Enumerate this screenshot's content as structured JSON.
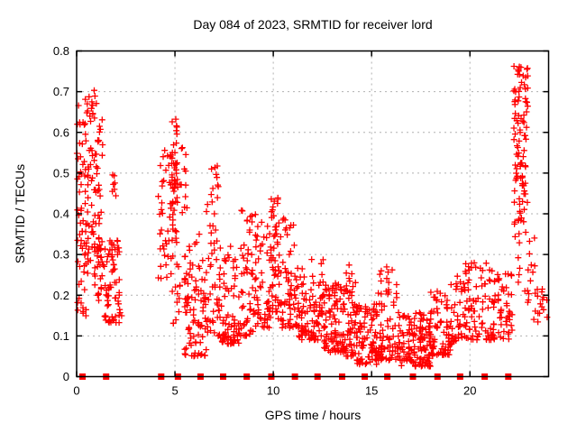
{
  "chart_data": {
    "type": "scatter",
    "title": "Day 084 of 2023, SRMTID for receiver lord",
    "xlabel": "GPS time / hours",
    "ylabel": "SRMTID / TECUs",
    "xlim": [
      0,
      24
    ],
    "ylim": [
      0,
      0.8
    ],
    "xticks": [
      0,
      5,
      10,
      15,
      20
    ],
    "xtick_labels": [
      "0",
      "5",
      "10",
      "15",
      "20"
    ],
    "yticks": [
      0,
      0.1,
      0.2,
      0.3,
      0.4,
      0.5,
      0.6,
      0.7,
      0.8
    ],
    "ytick_labels": [
      "0",
      "0.1",
      "0.2",
      "0.3",
      "0.4",
      "0.5",
      "0.6",
      "0.7",
      "0.8"
    ],
    "grid": true,
    "legend": "none",
    "marker": {
      "shape": "plus",
      "color": "#ff0000",
      "size": 7
    },
    "axis_color": "#000000",
    "grid_color": "#b0b0b0",
    "background": "#ffffff",
    "series": [
      {
        "name": "SRMTID points",
        "note": "dense + markers; clusters encoded as [x_start_h, x_end_h, y_min_TECU, y_max_TECU, n_points, bias] (bias>1 skews low, <1 skews high)",
        "clusters": [
          [
            0.02,
            0.62,
            0.13,
            0.685,
            75,
            1.0
          ],
          [
            0.55,
            1.32,
            0.28,
            0.705,
            75,
            1.15
          ],
          [
            0.85,
            1.35,
            0.18,
            0.33,
            20,
            1.0
          ],
          [
            1.4,
            2.2,
            0.13,
            0.35,
            60,
            1.25
          ],
          [
            1.8,
            2.0,
            0.42,
            0.5,
            7,
            1.0
          ],
          [
            2.1,
            2.35,
            0.13,
            0.18,
            6,
            1.0
          ],
          [
            4.15,
            4.9,
            0.2,
            0.57,
            45,
            1.1
          ],
          [
            4.85,
            5.15,
            0.3,
            0.635,
            45,
            0.85
          ],
          [
            4.9,
            5.6,
            0.12,
            0.3,
            18,
            1.2
          ],
          [
            5.25,
            5.65,
            0.4,
            0.57,
            12,
            1.0
          ],
          [
            5.5,
            6.6,
            0.05,
            0.35,
            85,
            1.6
          ],
          [
            6.6,
            7.3,
            0.1,
            0.53,
            55,
            1.8
          ],
          [
            7.3,
            8.25,
            0.08,
            0.33,
            70,
            1.5
          ],
          [
            8.25,
            9.1,
            0.1,
            0.43,
            60,
            1.7
          ],
          [
            9.1,
            9.85,
            0.12,
            0.38,
            50,
            1.4
          ],
          [
            9.85,
            10.25,
            0.15,
            0.44,
            45,
            1.1
          ],
          [
            10.25,
            11.3,
            0.12,
            0.41,
            75,
            1.8
          ],
          [
            11.3,
            12.55,
            0.09,
            0.3,
            90,
            1.6
          ],
          [
            12.55,
            13.6,
            0.06,
            0.23,
            90,
            1.4
          ],
          [
            13.6,
            14.2,
            0.05,
            0.31,
            55,
            1.7
          ],
          [
            14.2,
            15.3,
            0.03,
            0.18,
            90,
            1.3
          ],
          [
            15.3,
            16.5,
            0.04,
            0.27,
            85,
            1.8
          ],
          [
            16.5,
            18.0,
            0.025,
            0.16,
            120,
            1.2
          ],
          [
            18.0,
            19.0,
            0.05,
            0.21,
            70,
            1.3
          ],
          [
            19.0,
            19.6,
            0.08,
            0.27,
            35,
            1.5
          ],
          [
            19.6,
            21.2,
            0.09,
            0.28,
            85,
            1.6
          ],
          [
            21.2,
            22.15,
            0.09,
            0.26,
            55,
            1.4
          ],
          [
            22.2,
            22.95,
            0.15,
            0.765,
            110,
            0.55
          ],
          [
            22.9,
            23.35,
            0.14,
            0.36,
            14,
            1.2
          ],
          [
            23.35,
            23.95,
            0.13,
            0.23,
            14,
            1.0
          ]
        ]
      },
      {
        "name": "baseline markers",
        "marker": "filled-square",
        "color": "#ff0000",
        "y": 0,
        "x": [
          0.3,
          1.5,
          4.3,
          5.15,
          6.3,
          7.45,
          8.65,
          9.9,
          11.1,
          12.25,
          13.5,
          14.65,
          15.8,
          17.1,
          18.35,
          19.5,
          20.75,
          21.95
        ]
      }
    ]
  }
}
